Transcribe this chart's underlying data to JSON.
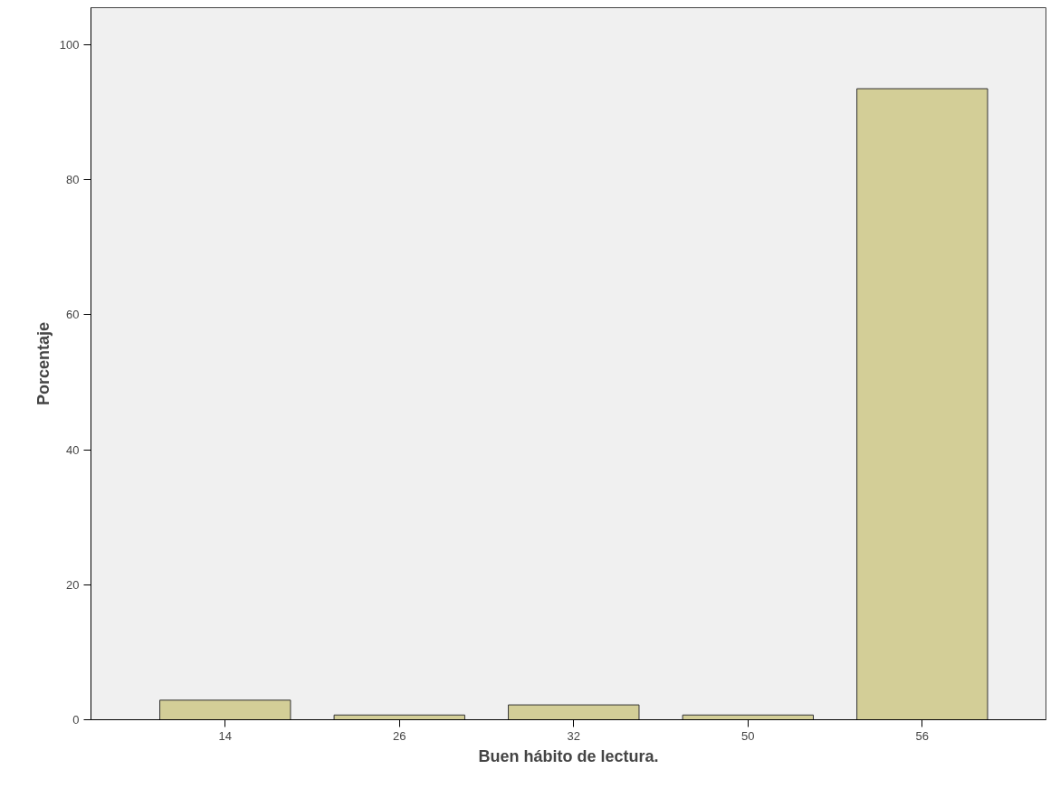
{
  "chart_data": {
    "type": "bar",
    "xlabel": "Buen hábito de lectura.",
    "ylabel": "Porcentaje",
    "categories": [
      "14",
      "26",
      "32",
      "50",
      "56"
    ],
    "values": [
      2.9,
      0.7,
      2.2,
      0.7,
      93.5
    ],
    "color": "#d3ce97",
    "ylim": [
      0,
      105.5
    ],
    "yticks": [
      0,
      20,
      40,
      60,
      80,
      100
    ],
    "grid": false
  }
}
